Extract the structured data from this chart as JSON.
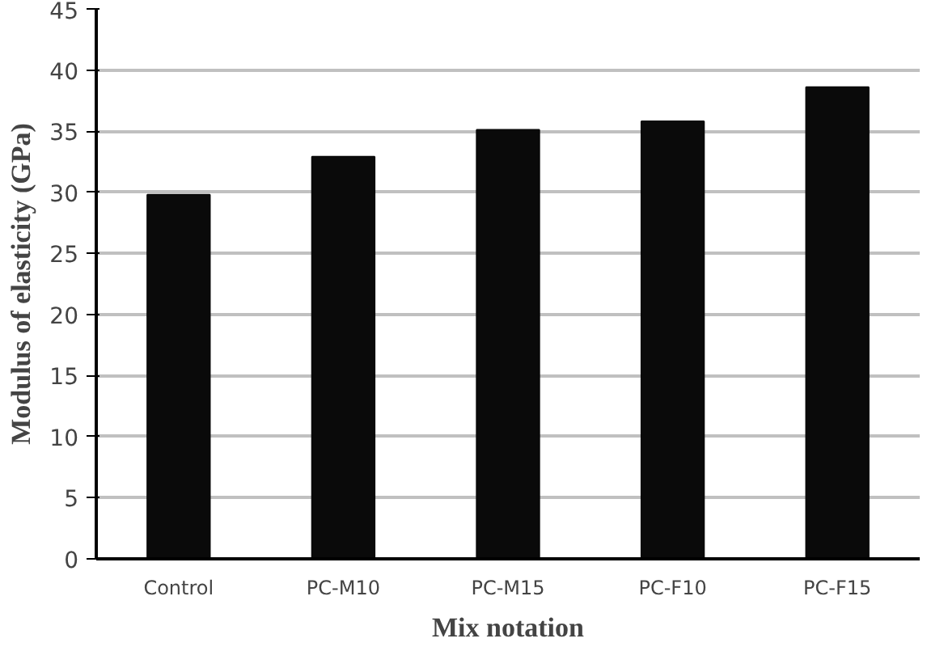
{
  "chart_data": {
    "type": "bar",
    "xlabel": "Mix notation",
    "ylabel": "Modulus of elasticity (GPa)",
    "categories": [
      "Control",
      "PC-M10",
      "PC-M15",
      "PC-F10",
      "PC-F15"
    ],
    "values": [
      29.8,
      32.9,
      35.1,
      35.8,
      38.6
    ],
    "color": "#0a0a0a",
    "ylim": [
      0,
      45
    ],
    "yticks": [
      0,
      5,
      10,
      15,
      20,
      25,
      30,
      35,
      40,
      45
    ],
    "grid": "y"
  }
}
